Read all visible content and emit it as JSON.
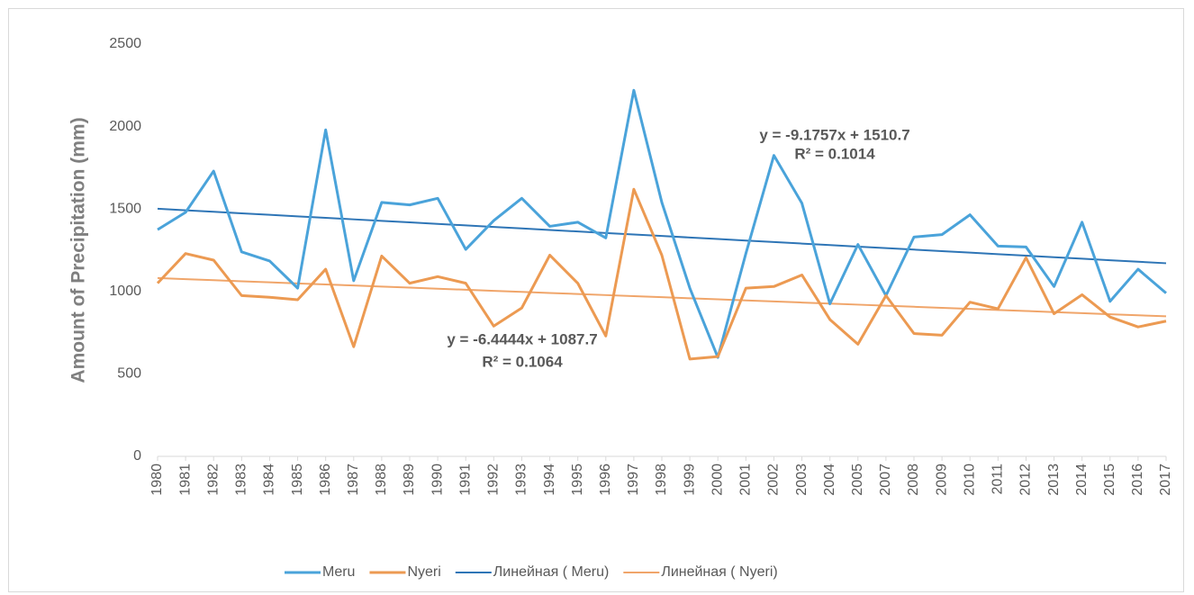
{
  "chart_data": {
    "type": "line",
    "y_label": "Amount of Precipitation  (mm)",
    "categories": [
      "1980",
      "1981",
      "1982",
      "1983",
      "1984",
      "1985",
      "1986",
      "1987",
      "1988",
      "1989",
      "1990",
      "1991",
      "1992",
      "1993",
      "1994",
      "1995",
      "1996",
      "1997",
      "1998",
      "1999",
      "2000",
      "2001",
      "2002",
      "2003",
      "2004",
      "2005",
      "2007",
      "2008",
      "2009",
      "2010",
      "2011",
      "2012",
      "2013",
      "2014",
      "2015",
      "2016",
      "2017"
    ],
    "series": [
      {
        "name": "Meru",
        "color": "#4aa3da",
        "width": 3,
        "values": [
          1375,
          1480,
          1730,
          1240,
          1185,
          1020,
          1980,
          1065,
          1540,
          1525,
          1565,
          1255,
          1430,
          1565,
          1395,
          1420,
          1325,
          2220,
          1540,
          1020,
          600,
          1230,
          1825,
          1535,
          925,
          1285,
          975,
          1330,
          1345,
          1465,
          1275,
          1270,
          1030,
          1420,
          940,
          1135,
          990
        ]
      },
      {
        "name": "Nyeri",
        "color": "#ec9a52",
        "width": 3,
        "values": [
          1050,
          1230,
          1190,
          975,
          965,
          950,
          1135,
          665,
          1215,
          1050,
          1090,
          1050,
          790,
          900,
          1220,
          1050,
          730,
          1620,
          1220,
          590,
          605,
          1020,
          1030,
          1100,
          830,
          680,
          975,
          745,
          735,
          935,
          895,
          1205,
          865,
          980,
          845,
          785,
          820
        ]
      },
      {
        "name": "Линейная ( Meru)",
        "color": "#2e75b6",
        "width": 2,
        "values": [
          1501.5,
          1492.3,
          1483.2,
          1474.0,
          1464.8,
          1455.6,
          1446.5,
          1437.3,
          1428.1,
          1418.9,
          1409.8,
          1400.6,
          1391.4,
          1382.2,
          1373.1,
          1363.9,
          1354.7,
          1345.5,
          1336.4,
          1327.2,
          1318.0,
          1308.8,
          1299.7,
          1290.5,
          1281.3,
          1272.1,
          1263.0,
          1253.8,
          1244.6,
          1235.4,
          1226.3,
          1217.1,
          1207.9,
          1198.7,
          1189.6,
          1180.4,
          1171.2
        ]
      },
      {
        "name": "Линейная ( Nyeri)",
        "color": "#f0a56a",
        "width": 2,
        "values": [
          1081.3,
          1074.8,
          1068.4,
          1061.9,
          1055.5,
          1049.0,
          1042.6,
          1036.1,
          1029.7,
          1023.3,
          1016.8,
          1010.4,
          1003.9,
          997.5,
          991.0,
          984.6,
          978.1,
          971.7,
          965.3,
          958.8,
          952.4,
          945.9,
          939.5,
          933.0,
          926.6,
          920.1,
          913.7,
          907.3,
          900.8,
          894.4,
          887.9,
          881.5,
          875.0,
          868.6,
          862.1,
          855.7,
          849.3
        ]
      }
    ],
    "annotations": [
      {
        "equation": "y = -9.1757x + 1510.7",
        "r2": "R² = 0.1014"
      },
      {
        "equation": "y = -6.4444x + 1087.7",
        "r2": "R² = 0.1064"
      }
    ],
    "ylim": [
      0,
      2500
    ],
    "yticks": [
      0,
      500,
      1000,
      1500,
      2000,
      2500
    ],
    "grid": false,
    "legend": "bottom"
  }
}
